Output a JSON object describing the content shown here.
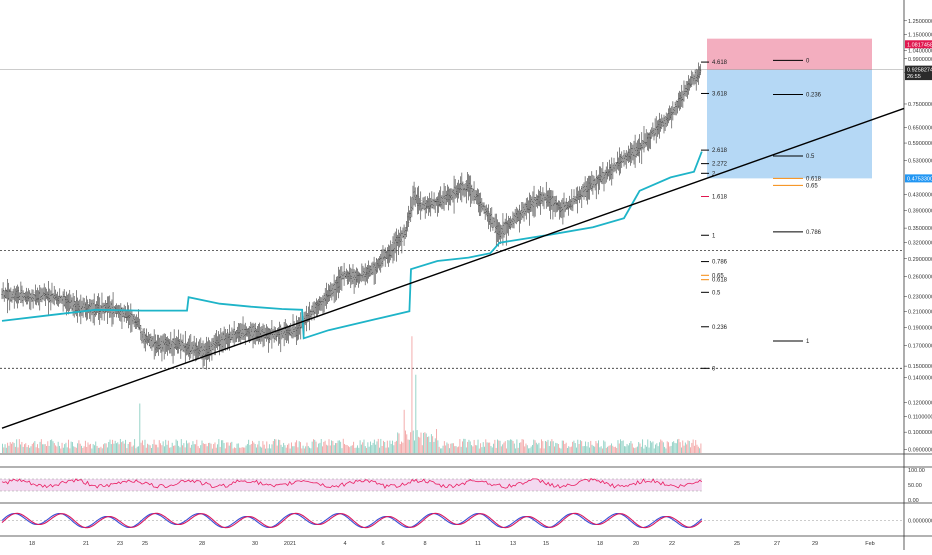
{
  "chart_data": {
    "type": "line",
    "title": "",
    "xlabel": "",
    "ylabel": "",
    "price_scale": "log",
    "ylim": [
      0.088,
      1.42
    ],
    "grid": false,
    "colors": {
      "candles": "#333333",
      "vwap": "#1eb4c8",
      "trendline": "#000000",
      "fib_black": "#000000",
      "fib_red": "#e0174f",
      "fib_orange": "#f5890c",
      "short_zone_top": "#f3aebf",
      "short_zone_bottom": "#b5d8f5",
      "volume_up": "#8ccfc2",
      "volume_down": "#f2a3a3",
      "rsi_line": "#e91e63",
      "rsi_band": "#f3d9f0",
      "osc_fast": "#3a4fd6",
      "osc_slow": "#d81b60"
    },
    "y_ticks": [
      "1.40000000",
      "1.25000000",
      "1.15000000",
      "1.04000000",
      "0.99000000",
      "0.91000000",
      "0.75000000",
      "0.65000000",
      "0.59000000",
      "0.53000000",
      "0.43000000",
      "0.39000000",
      "0.35000000",
      "0.32000000",
      "0.29000000",
      "0.26000000",
      "0.23000000",
      "0.21000000",
      "0.19000000",
      "0.17000000",
      "0.15000000",
      "0.14000000",
      "0.12000000",
      "0.11000000",
      "0.10000000",
      "0.09000000"
    ],
    "x_ticks": [
      "18",
      "21",
      "23",
      "25",
      "28",
      "30",
      "2021",
      "4",
      "6",
      "8",
      "11",
      "13",
      "15",
      "18",
      "20",
      "22",
      "25",
      "27",
      "29",
      "Feb"
    ],
    "price_badges": [
      {
        "text": "1.08174587",
        "color": "#e0174f",
        "price": 1.082
      },
      {
        "text": "0.92582744",
        "color": "#2b2b2b",
        "price": 0.926
      },
      {
        "text": "26:55",
        "color": "#2b2b2b",
        "price": 0.89
      },
      {
        "text": "0.99883347",
        "color": "none",
        "price": 0.84
      },
      {
        "text": "0.47533002",
        "color": "#2196f3",
        "price": 0.475
      }
    ],
    "fib_extension_levels": [
      {
        "label": "4.618",
        "price": 0.97,
        "color": "black"
      },
      {
        "label": "3.618",
        "price": 0.8,
        "color": "black"
      },
      {
        "label": "2.618",
        "price": 0.565,
        "color": "black"
      },
      {
        "label": "2.272",
        "price": 0.52,
        "color": "black"
      },
      {
        "label": "2",
        "price": 0.49,
        "color": "black"
      },
      {
        "label": "1.618",
        "price": 0.425,
        "color": "red"
      },
      {
        "label": "1",
        "price": 0.335,
        "color": "black"
      },
      {
        "label": "0.786",
        "price": 0.285,
        "color": "black"
      },
      {
        "label": "0.65",
        "price": 0.262,
        "color": "orange"
      },
      {
        "label": "0.618",
        "price": 0.255,
        "color": "orange"
      },
      {
        "label": "0.5",
        "price": 0.236,
        "color": "black"
      },
      {
        "label": "0.236",
        "price": 0.191,
        "color": "black"
      },
      {
        "label": "0",
        "price": 0.148,
        "color": "black"
      }
    ],
    "fib_retracement_levels": [
      {
        "label": "0",
        "price": 0.98,
        "color": "black"
      },
      {
        "label": "0.236",
        "price": 0.795,
        "color": "black"
      },
      {
        "label": "0.5",
        "price": 0.545,
        "color": "black"
      },
      {
        "label": "0.618",
        "price": 0.475,
        "color": "orange"
      },
      {
        "label": "0.65",
        "price": 0.455,
        "color": "orange"
      },
      {
        "label": "0.786",
        "price": 0.342,
        "color": "black"
      },
      {
        "label": "1",
        "price": 0.175,
        "color": "black"
      }
    ],
    "horizontal_dashed_levels": [
      0.305,
      0.148
    ],
    "short_position": {
      "stop": 1.12,
      "entry": 0.925,
      "target": 0.475
    },
    "trendline": {
      "start_day": 0,
      "start_price": 0.1025,
      "end_day": 45,
      "end_price": 0.47
    },
    "vwap_anchor_points": [
      {
        "day": 0,
        "price": 0.198
      },
      {
        "day": 3,
        "price": 0.205
      },
      {
        "day": 6,
        "price": 0.212
      },
      {
        "day": 9,
        "price": 0.211
      },
      {
        "day": 11.9,
        "price": 0.211
      },
      {
        "day": 12.0,
        "price": 0.229
      },
      {
        "day": 14,
        "price": 0.22
      },
      {
        "day": 16,
        "price": 0.216
      },
      {
        "day": 18,
        "price": 0.213
      },
      {
        "day": 19.3,
        "price": 0.212
      },
      {
        "day": 19.4,
        "price": 0.178
      },
      {
        "day": 21,
        "price": 0.187
      },
      {
        "day": 24,
        "price": 0.2
      },
      {
        "day": 26.2,
        "price": 0.21
      },
      {
        "day": 26.3,
        "price": 0.272
      },
      {
        "day": 28,
        "price": 0.286
      },
      {
        "day": 30,
        "price": 0.292
      },
      {
        "day": 31.4,
        "price": 0.3
      },
      {
        "day": 32,
        "price": 0.32
      },
      {
        "day": 35,
        "price": 0.335
      },
      {
        "day": 38,
        "price": 0.352
      },
      {
        "day": 40,
        "price": 0.372
      },
      {
        "day": 41,
        "price": 0.44
      },
      {
        "day": 43,
        "price": 0.478
      },
      {
        "day": 44.5,
        "price": 0.495
      },
      {
        "day": 45,
        "price": 0.56
      }
    ],
    "price_path": [
      {
        "day": 0,
        "price": 0.235
      },
      {
        "day": 1,
        "price": 0.231
      },
      {
        "day": 2,
        "price": 0.228
      },
      {
        "day": 3,
        "price": 0.232
      },
      {
        "day": 4,
        "price": 0.224
      },
      {
        "day": 5,
        "price": 0.216
      },
      {
        "day": 6,
        "price": 0.213
      },
      {
        "day": 7,
        "price": 0.214
      },
      {
        "day": 8,
        "price": 0.206
      },
      {
        "day": 8.8,
        "price": 0.196
      },
      {
        "day": 9,
        "price": 0.18
      },
      {
        "day": 10,
        "price": 0.17
      },
      {
        "day": 11,
        "price": 0.172
      },
      {
        "day": 12,
        "price": 0.168
      },
      {
        "day": 13,
        "price": 0.164
      },
      {
        "day": 14,
        "price": 0.175
      },
      {
        "day": 15,
        "price": 0.182
      },
      {
        "day": 16,
        "price": 0.186
      },
      {
        "day": 17,
        "price": 0.181
      },
      {
        "day": 18,
        "price": 0.184
      },
      {
        "day": 19,
        "price": 0.188
      },
      {
        "day": 20,
        "price": 0.212
      },
      {
        "day": 21,
        "price": 0.232
      },
      {
        "day": 22,
        "price": 0.262
      },
      {
        "day": 23,
        "price": 0.258
      },
      {
        "day": 24,
        "price": 0.275
      },
      {
        "day": 25,
        "price": 0.305
      },
      {
        "day": 26,
        "price": 0.345
      },
      {
        "day": 26.5,
        "price": 0.43
      },
      {
        "day": 27,
        "price": 0.4
      },
      {
        "day": 28,
        "price": 0.41
      },
      {
        "day": 29,
        "price": 0.432
      },
      {
        "day": 30,
        "price": 0.455
      },
      {
        "day": 31,
        "price": 0.395
      },
      {
        "day": 32,
        "price": 0.34
      },
      {
        "day": 33,
        "price": 0.37
      },
      {
        "day": 34,
        "price": 0.405
      },
      {
        "day": 35,
        "price": 0.425
      },
      {
        "day": 36,
        "price": 0.395
      },
      {
        "day": 37,
        "price": 0.42
      },
      {
        "day": 38,
        "price": 0.46
      },
      {
        "day": 39,
        "price": 0.49
      },
      {
        "day": 40,
        "price": 0.54
      },
      {
        "day": 41,
        "price": 0.57
      },
      {
        "day": 42,
        "price": 0.64
      },
      {
        "day": 43,
        "price": 0.7
      },
      {
        "day": 44,
        "price": 0.82
      },
      {
        "day": 45,
        "price": 0.93
      }
    ],
    "volume_spikes": [
      {
        "day": 26.3,
        "value": 1.0
      },
      {
        "day": 26.6,
        "value": 0.6
      },
      {
        "day": 8.8,
        "value": 0.45
      },
      {
        "day": 25.8,
        "value": 0.35
      }
    ],
    "rsi_band": [
      30,
      70
    ],
    "rsi_tick_labels": [
      "100.00",
      "50.00",
      "0.00"
    ],
    "oscillator_tick_labels": [
      "0.00000000"
    ]
  }
}
